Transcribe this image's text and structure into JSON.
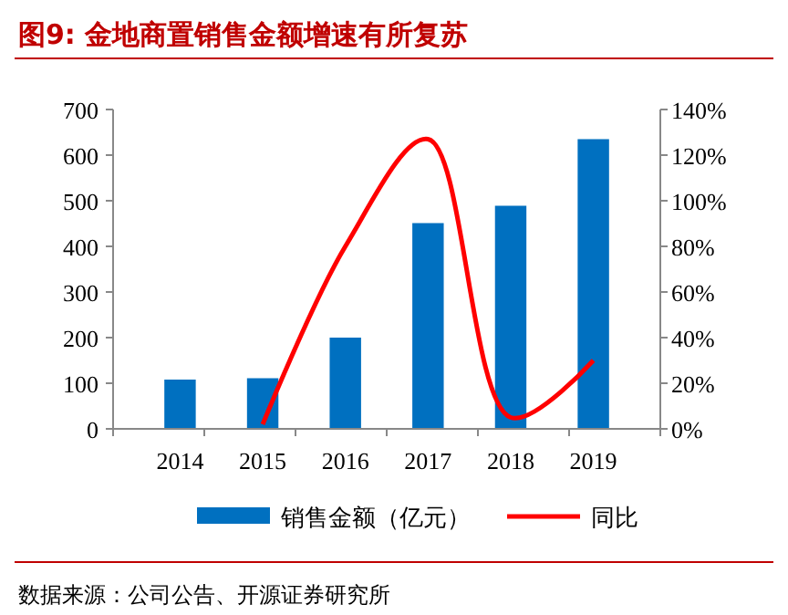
{
  "chart_data": {
    "type": "bar",
    "title": "图9:  金地商置销售金额增速有所复苏",
    "categories": [
      "2014",
      "2015",
      "2016",
      "2017",
      "2018",
      "2019"
    ],
    "series": [
      {
        "name": "销售金额（亿元）",
        "color": "#0070c0",
        "values": [
          108,
          111,
          200,
          451,
          489,
          635
        ]
      },
      {
        "name": "同比",
        "type": "line",
        "axis": "y2",
        "color": "#ff0000",
        "values": [
          null,
          2,
          80,
          127,
          5,
          30
        ]
      }
    ],
    "ylim": [
      0,
      700
    ],
    "yticks": [
      0,
      100,
      200,
      300,
      400,
      500,
      600,
      700
    ],
    "y2lim": [
      0,
      140
    ],
    "y2ticks": [
      {
        "value": 0,
        "label": "0%"
      },
      {
        "value": 20,
        "label": "20%"
      },
      {
        "value": 40,
        "label": "40%"
      },
      {
        "value": 60,
        "label": "60%"
      },
      {
        "value": 80,
        "label": "80%"
      },
      {
        "value": 100,
        "label": "100%"
      },
      {
        "value": 120,
        "label": "120%"
      },
      {
        "value": 140,
        "label": "140%"
      }
    ],
    "legend": "bottom",
    "annotations": [
      "数据来源：公司公告、开源证券研究所"
    ]
  }
}
